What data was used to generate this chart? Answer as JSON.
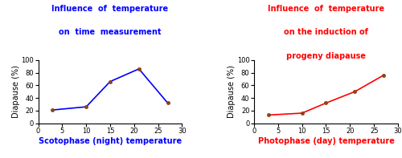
{
  "left": {
    "title": "Influence  of  temperature\non  time  measurement",
    "title_color": "#0000FF",
    "xlabel": "Scotophase (night) temperature",
    "xlabel_color": "#0000FF",
    "ylabel": "Diapause (%)",
    "x": [
      3,
      10,
      15,
      21,
      27
    ],
    "y": [
      21,
      26,
      66,
      86,
      32
    ],
    "line_color": "#0000FF",
    "marker_color": "#8B4513",
    "xlim": [
      0,
      30
    ],
    "ylim": [
      0,
      100
    ],
    "xticks": [
      0,
      5,
      10,
      15,
      20,
      25,
      30
    ],
    "yticks": [
      0,
      20,
      40,
      60,
      80,
      100
    ]
  },
  "right": {
    "title": "Influence  of  temperature\non the induction of\nprogeny diapause",
    "title_color": "#FF0000",
    "xlabel": "Photophase (day) temperature",
    "xlabel_color": "#FF0000",
    "ylabel": "Diapause (%)",
    "x": [
      3,
      10,
      15,
      21,
      27
    ],
    "y": [
      13,
      16,
      32,
      50,
      76
    ],
    "line_color": "#FF0000",
    "marker_color": "#8B4513",
    "xlim": [
      0,
      30
    ],
    "ylim": [
      0,
      100
    ],
    "xticks": [
      0,
      5,
      10,
      15,
      20,
      25,
      30
    ],
    "yticks": [
      0,
      20,
      40,
      60,
      80,
      100
    ]
  }
}
